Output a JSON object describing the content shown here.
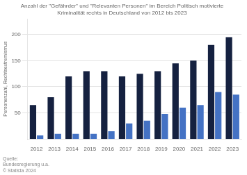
{
  "chart_data": {
    "type": "bar",
    "title": "Anzahl der \"Gefährder\" und \"Relevanten Personen\" im Bereich Politisch motivierte\nKriminalität rechts in Deutschland von 2012 bis 2023",
    "categories": [
      "2012",
      "2013",
      "2014",
      "2015",
      "2016",
      "2017",
      "2018",
      "2019",
      "2020",
      "2021",
      "2022",
      "2023"
    ],
    "series": [
      {
        "color": "#152140",
        "values": [
          65,
          80,
          120,
          130,
          130,
          120,
          125,
          130,
          145,
          150,
          180,
          195
        ]
      },
      {
        "color": "#4472c4",
        "values": [
          7,
          10,
          10,
          10,
          15,
          30,
          35,
          48,
          60,
          65,
          90,
          85
        ]
      }
    ],
    "ylabel": "Personenzahl, Rechtsextremismus",
    "ylim": [
      0,
      230
    ],
    "yticks": [
      50,
      100,
      150,
      200
    ],
    "grid": true,
    "annotation": "Quelle:\nBundesregierung u.a.\n© Statista 2024"
  }
}
